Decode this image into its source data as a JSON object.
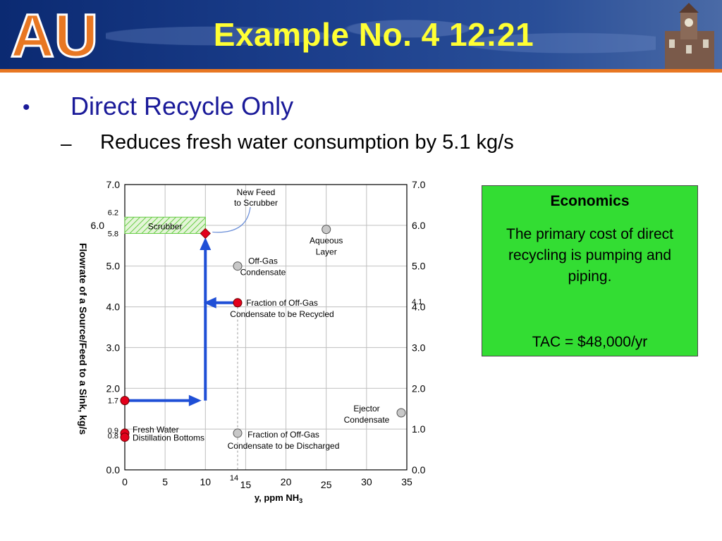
{
  "slide": {
    "title": "Example No. 4  12:21",
    "logo_text": "AU",
    "bullet": "Direct Recycle Only",
    "sub_bullet": "Reduces fresh water consumption by 5.1 kg/s"
  },
  "economics": {
    "heading": "Economics",
    "body": "The primary cost of direct recycling is pumping and piping.",
    "tac": "TAC = $48,000/yr"
  },
  "colors": {
    "banner": "#1c3f8c",
    "title": "#ffff33",
    "bullet": "#1a1a99",
    "econ_box": "#33dd33",
    "arrow": "#1f4fd6",
    "fresh_points": "#e3001b",
    "source_points": "#c8c8c8",
    "scrubber_hatch": "#66cc44"
  },
  "chart_data": {
    "type": "scatter",
    "xlabel": "y, ppm NH",
    "xlabel_sub": "3",
    "ylabel": "Flowrate of a Source/Feed to a Sink, kg/s",
    "xlim": [
      0,
      35
    ],
    "ylim": [
      0,
      7
    ],
    "grid": true,
    "x_ticks": [
      {
        "label": "0",
        "value": 0
      },
      {
        "label": "5",
        "value": 5
      },
      {
        "label": "10",
        "value": 10
      },
      {
        "label": "15",
        "value": 15
      },
      {
        "label": "20",
        "value": 20
      },
      {
        "label": "25",
        "value": 25
      },
      {
        "label": "30",
        "value": 30
      },
      {
        "label": "35",
        "value": 35
      }
    ],
    "x_marker": {
      "label": "14",
      "value": 14
    },
    "y_ticks_left": [
      {
        "label": "7.0",
        "value": 7
      },
      {
        "label": "6.0",
        "value": 6
      },
      {
        "label": "5.0",
        "value": 5
      },
      {
        "label": "4.0",
        "value": 4
      },
      {
        "label": "3.0",
        "value": 3
      },
      {
        "label": "2.0",
        "value": 2
      },
      {
        "label": "0.0",
        "value": 0
      }
    ],
    "y_ticks_left_small": [
      {
        "label": "6.2",
        "value": 6.2
      },
      {
        "label": "5.8",
        "value": 5.8
      },
      {
        "label": "1.7",
        "value": 1.7
      },
      {
        "label": "0.9",
        "value": 0.9
      },
      {
        "label": "0.8",
        "value": 0.8
      }
    ],
    "y_ticks_right": [
      {
        "label": "7.0",
        "value": 7
      },
      {
        "label": "6.0",
        "value": 6
      },
      {
        "label": "5.0",
        "value": 5
      },
      {
        "label": "4.0",
        "value": 4
      },
      {
        "label": "3.0",
        "value": 3
      },
      {
        "label": "2.0",
        "value": 2
      },
      {
        "label": "1.0",
        "value": 1
      },
      {
        "label": "0.0",
        "value": 0
      }
    ],
    "y_ticks_right_small": [
      {
        "label": "4.1",
        "value": 4.1
      }
    ],
    "sink": {
      "label": "Scrubber",
      "x_range": [
        0,
        10
      ],
      "y_range": [
        5.8,
        6.2
      ]
    },
    "feed_point": {
      "label": "New Feed\nto Scrubber",
      "x": 10,
      "y": 5.8
    },
    "fresh_points": [
      {
        "name": "fresh-feed-point",
        "x": 0,
        "y": 1.7,
        "label": ""
      },
      {
        "name": "fresh-water-point",
        "x": 0,
        "y": 0.9,
        "label": "Fresh Water"
      },
      {
        "name": "distillation-bottoms-point",
        "x": 0,
        "y": 0.8,
        "label": "Distillation  Bottoms"
      },
      {
        "name": "recycled-condensate-point",
        "x": 14,
        "y": 4.1,
        "label": "Fraction of Off-Gas\nCondensate to be Recycled"
      }
    ],
    "sources": [
      {
        "name": "aqueous-layer-point",
        "x": 25,
        "y": 5.9,
        "label": "Aqueous\nLayer"
      },
      {
        "name": "off-gas-condensate-point",
        "x": 14,
        "y": 5.0,
        "label": "Off-Gas\nCondensate"
      },
      {
        "name": "ejector-condensate-point",
        "x": 35,
        "y": 1.4,
        "label": "Ejector\nCondensate"
      },
      {
        "name": "discharged-condensate-point",
        "x": 14,
        "y": 0.9,
        "label": "Fraction of Off-Gas\nCondensate to be Discharged"
      }
    ],
    "arrows": [
      {
        "name": "fresh-to-mix-arrow",
        "from": [
          0,
          1.7
        ],
        "to": [
          9,
          1.7
        ]
      },
      {
        "name": "mix-to-feed-arrow",
        "from": [
          10,
          1.7
        ],
        "to": [
          10,
          5.6
        ]
      },
      {
        "name": "recycle-arrow",
        "from": [
          14,
          4.1
        ],
        "to": [
          10.3,
          4.1
        ]
      }
    ]
  }
}
